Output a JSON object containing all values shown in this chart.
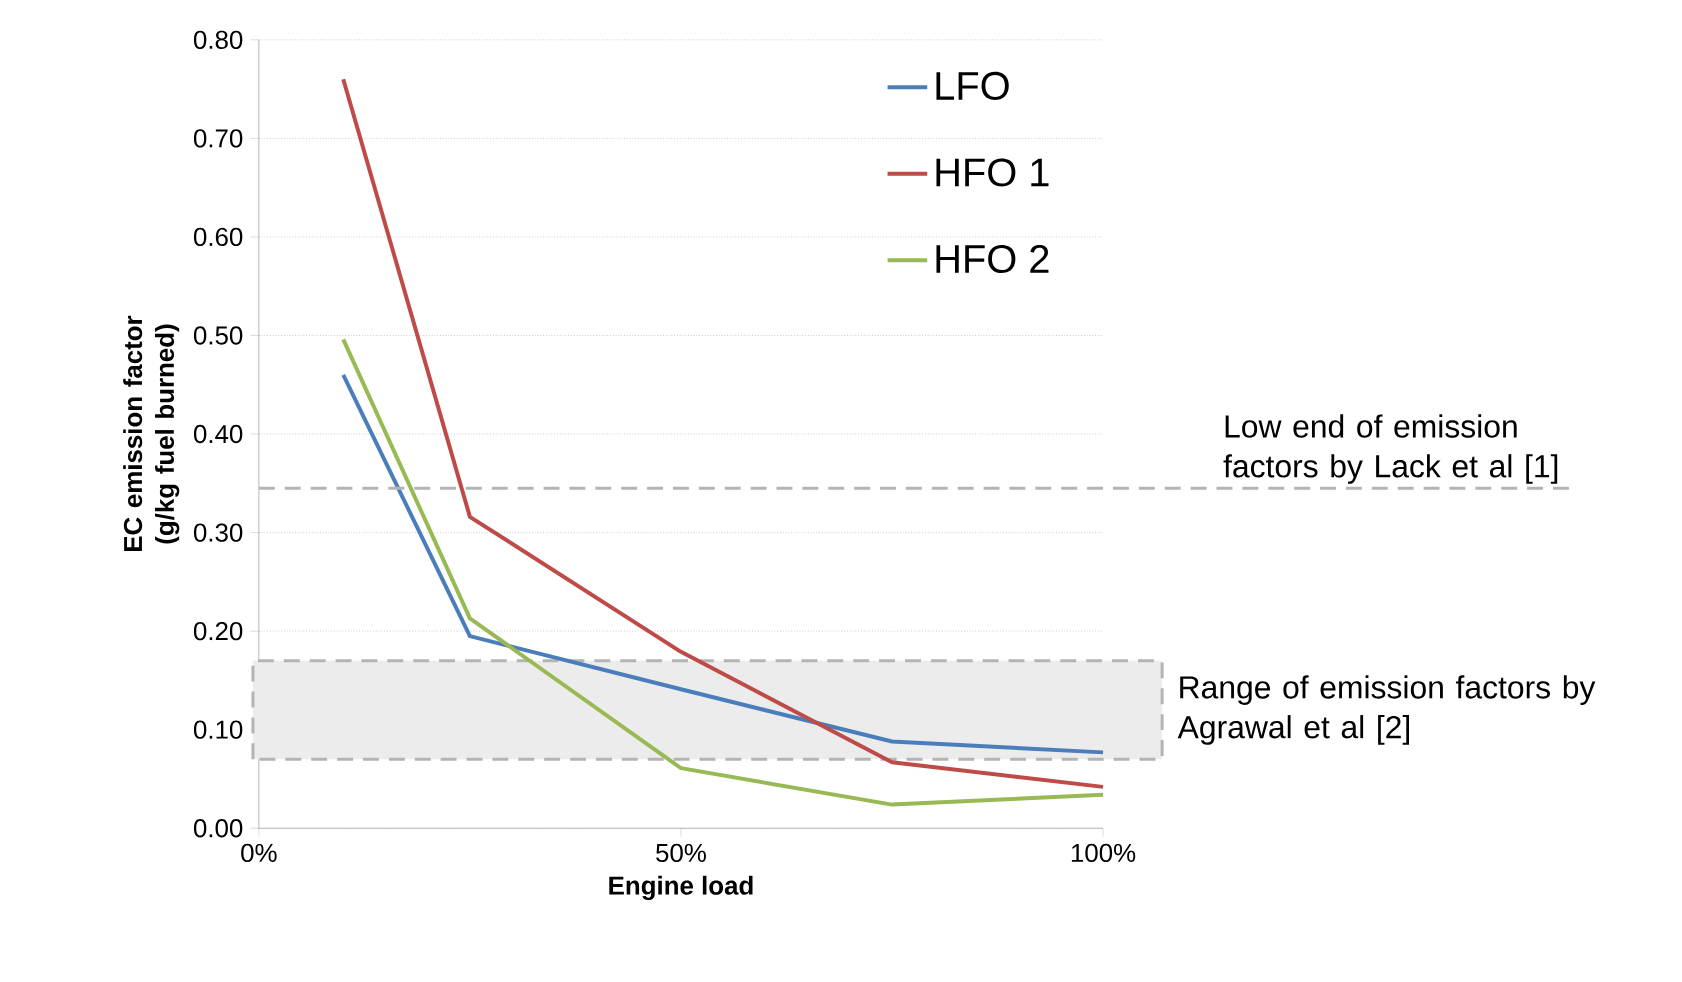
{
  "chart_data": {
    "type": "line",
    "xlabel": "Engine load",
    "ylabel": "EC emission factor (g/kg fuel burned)",
    "x": [
      10,
      25,
      50,
      75,
      100
    ],
    "series": [
      {
        "name": "LFO",
        "color": "#4a7ebb",
        "values": [
          0.46,
          0.195,
          0.141,
          0.088,
          0.077
        ]
      },
      {
        "name": "HFO 1",
        "color": "#be4b48",
        "values": [
          0.76,
          0.316,
          0.179,
          0.067,
          0.042
        ]
      },
      {
        "name": "HFO 2",
        "color": "#98b954",
        "values": [
          0.496,
          0.213,
          0.061,
          0.024,
          0.034
        ]
      }
    ],
    "xlim": [
      0,
      100
    ],
    "xticks": [
      {
        "value": 0,
        "label": "0%"
      },
      {
        "value": 50,
        "label": "50%"
      },
      {
        "value": 100,
        "label": "100%"
      }
    ],
    "ylim": [
      0,
      0.8
    ],
    "yticks": [
      {
        "value": 0,
        "label": "0.00"
      },
      {
        "value": 0.1,
        "label": "0.10"
      },
      {
        "value": 0.2,
        "label": "0.20"
      },
      {
        "value": 0.3,
        "label": "0.30"
      },
      {
        "value": 0.4,
        "label": "0.40"
      },
      {
        "value": 0.5,
        "label": "0.50"
      },
      {
        "value": 0.6,
        "label": "0.60"
      },
      {
        "value": 0.7,
        "label": "0.70"
      },
      {
        "value": 0.8,
        "label": "0.80"
      }
    ],
    "ref_lines": [
      {
        "axis": "y",
        "value": 0.345,
        "label": "Low end of emission factors by Lack et al [1]",
        "color": "#b4b4b4",
        "line_style": "dashed"
      }
    ],
    "bands": [
      {
        "axis": "y",
        "from": 0.07,
        "to": 0.17,
        "label": "Range of emission factors by Agrawal et al [2]",
        "color": "#b4b4b4"
      }
    ],
    "grid": "y",
    "legend": "top right",
    "marker": "none",
    "line_style": "solid"
  }
}
